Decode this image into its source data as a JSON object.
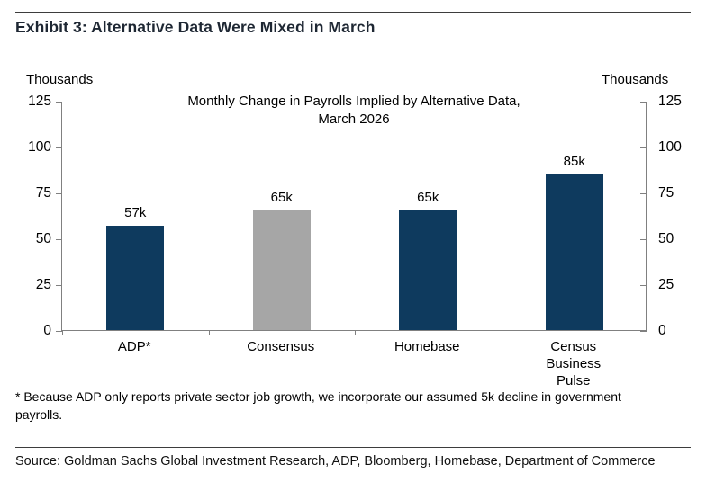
{
  "header": {
    "exhibit_title": "Exhibit 3: Alternative Data Were Mixed in March"
  },
  "chart_data": {
    "type": "bar",
    "title": "Monthly Change in Payrolls Implied by Alternative Data, March 2026",
    "title_lines": [
      "Monthly Change in Payrolls Implied by Alternative Data,",
      "March 2026"
    ],
    "left_axis_label": "Thousands",
    "right_axis_label": "Thousands",
    "categories": [
      "ADP*",
      "Consensus",
      "Homebase",
      "Census Business Pulse"
    ],
    "values": [
      57,
      65,
      65,
      85
    ],
    "data_labels": [
      "57k",
      "65k",
      "65k",
      "85k"
    ],
    "bar_colors": [
      "#0e3a5e",
      "#a6a6a6",
      "#0e3a5e",
      "#0e3a5e"
    ],
    "ylim": [
      0,
      125
    ],
    "yticks": [
      0,
      25,
      50,
      75,
      100,
      125
    ],
    "grid": false,
    "legend": "none",
    "unit": "Thousands"
  },
  "footnote": "* Because ADP only reports private sector job growth, we incorporate our assumed 5k decline in government payrolls.",
  "source": "Source: Goldman Sachs Global Investment Research, ADP, Bloomberg, Homebase, Department of Commerce",
  "colors": {
    "navy": "#0e3a5e",
    "gray": "#a6a6a6",
    "axis": "#808080",
    "rule": "#3d3d3d"
  }
}
